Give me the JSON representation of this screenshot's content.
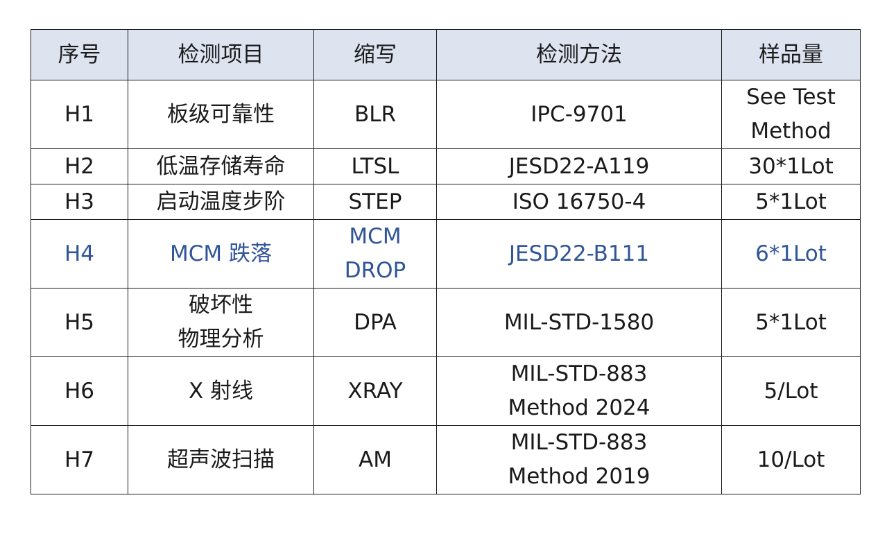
{
  "table": {
    "headers": [
      "序号",
      "检测项目",
      "缩写",
      "检测方法",
      "样品量"
    ],
    "rows": [
      {
        "id": "H1",
        "item": [
          "板级可靠性"
        ],
        "abbr": [
          "BLR"
        ],
        "method": [
          "IPC-9701"
        ],
        "qty": [
          "See Test",
          "Method"
        ],
        "highlight": false
      },
      {
        "id": "H2",
        "item": [
          "低温存储寿命"
        ],
        "abbr": [
          "LTSL"
        ],
        "method": [
          "JESD22-A119"
        ],
        "qty": [
          "30*1Lot"
        ],
        "highlight": false
      },
      {
        "id": "H3",
        "item": [
          "启动温度步阶"
        ],
        "abbr": [
          "STEP"
        ],
        "method": [
          "ISO 16750-4"
        ],
        "qty": [
          "5*1Lot"
        ],
        "highlight": false
      },
      {
        "id": "H4",
        "item": [
          "MCM 跌落"
        ],
        "abbr": [
          "MCM",
          "DROP"
        ],
        "method": [
          "JESD22-B111"
        ],
        "qty": [
          "6*1Lot"
        ],
        "highlight": true
      },
      {
        "id": "H5",
        "item": [
          "破坏性",
          "物理分析"
        ],
        "abbr": [
          "DPA"
        ],
        "method": [
          "MIL-STD-1580"
        ],
        "qty": [
          "5*1Lot"
        ],
        "highlight": false
      },
      {
        "id": "H6",
        "item": [
          "X 射线"
        ],
        "abbr": [
          "XRAY"
        ],
        "method": [
          "MIL-STD-883",
          "Method 2024"
        ],
        "qty": [
          "5/Lot"
        ],
        "highlight": false
      },
      {
        "id": "H7",
        "item": [
          "超声波扫描"
        ],
        "abbr": [
          "AM"
        ],
        "method": [
          "MIL-STD-883",
          "Method 2019"
        ],
        "qty": [
          "10/Lot"
        ],
        "highlight": false
      }
    ]
  },
  "colors": {
    "header_bg": "#dde3ef",
    "highlight_text": "#2f5597",
    "border": "#1a1a1a"
  }
}
